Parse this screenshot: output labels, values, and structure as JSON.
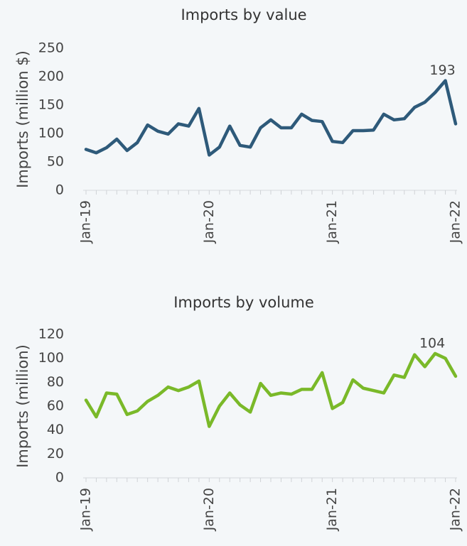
{
  "chart_data": [
    {
      "type": "line",
      "title": "Imports by value",
      "y_label": "Imports (million $)",
      "categories": [
        "Jan-19",
        null,
        null,
        null,
        null,
        null,
        null,
        null,
        null,
        null,
        null,
        null,
        "Jan-20",
        null,
        null,
        null,
        null,
        null,
        null,
        null,
        null,
        null,
        null,
        null,
        "Jan-21",
        null,
        null,
        null,
        null,
        null,
        null,
        null,
        null,
        null,
        null,
        null,
        "Jan-22"
      ],
      "values": [
        72,
        66,
        75,
        90,
        70,
        84,
        115,
        104,
        99,
        117,
        113,
        144,
        62,
        76,
        113,
        79,
        76,
        110,
        124,
        110,
        110,
        134,
        123,
        121,
        86,
        84,
        105,
        105,
        106,
        134,
        124,
        126,
        146,
        155,
        172,
        193,
        117
      ],
      "value_labels": [
        null,
        null,
        null,
        null,
        null,
        null,
        null,
        null,
        null,
        null,
        null,
        null,
        null,
        null,
        null,
        null,
        null,
        null,
        null,
        null,
        null,
        null,
        null,
        null,
        null,
        null,
        null,
        null,
        null,
        null,
        null,
        null,
        null,
        null,
        null,
        "193",
        null
      ],
      "color": "#2e5a7a",
      "ylim": [
        0,
        250
      ],
      "yticks": [
        0,
        50,
        100,
        150,
        200,
        250
      ]
    },
    {
      "type": "line",
      "title": "Imports by volume",
      "y_label": "Imports (million)",
      "categories": [
        "Jan-19",
        null,
        null,
        null,
        null,
        null,
        null,
        null,
        null,
        null,
        null,
        null,
        "Jan-20",
        null,
        null,
        null,
        null,
        null,
        null,
        null,
        null,
        null,
        null,
        null,
        "Jan-21",
        null,
        null,
        null,
        null,
        null,
        null,
        null,
        null,
        null,
        null,
        null,
        "Jan-22"
      ],
      "values": [
        65,
        51,
        71,
        70,
        53,
        56,
        64,
        69,
        76,
        73,
        76,
        81,
        43,
        60,
        71,
        61,
        55,
        79,
        69,
        71,
        70,
        74,
        74,
        88,
        58,
        63,
        82,
        75,
        73,
        71,
        86,
        84,
        103,
        93,
        104,
        100,
        85
      ],
      "value_labels": [
        null,
        null,
        null,
        null,
        null,
        null,
        null,
        null,
        null,
        null,
        null,
        null,
        null,
        null,
        null,
        null,
        null,
        null,
        null,
        null,
        null,
        null,
        null,
        null,
        null,
        null,
        null,
        null,
        null,
        null,
        null,
        null,
        null,
        null,
        "104",
        null,
        null
      ],
      "color": "#7ab929",
      "ylim": [
        0,
        120
      ],
      "yticks": [
        0,
        20,
        40,
        60,
        80,
        100,
        120
      ]
    }
  ]
}
